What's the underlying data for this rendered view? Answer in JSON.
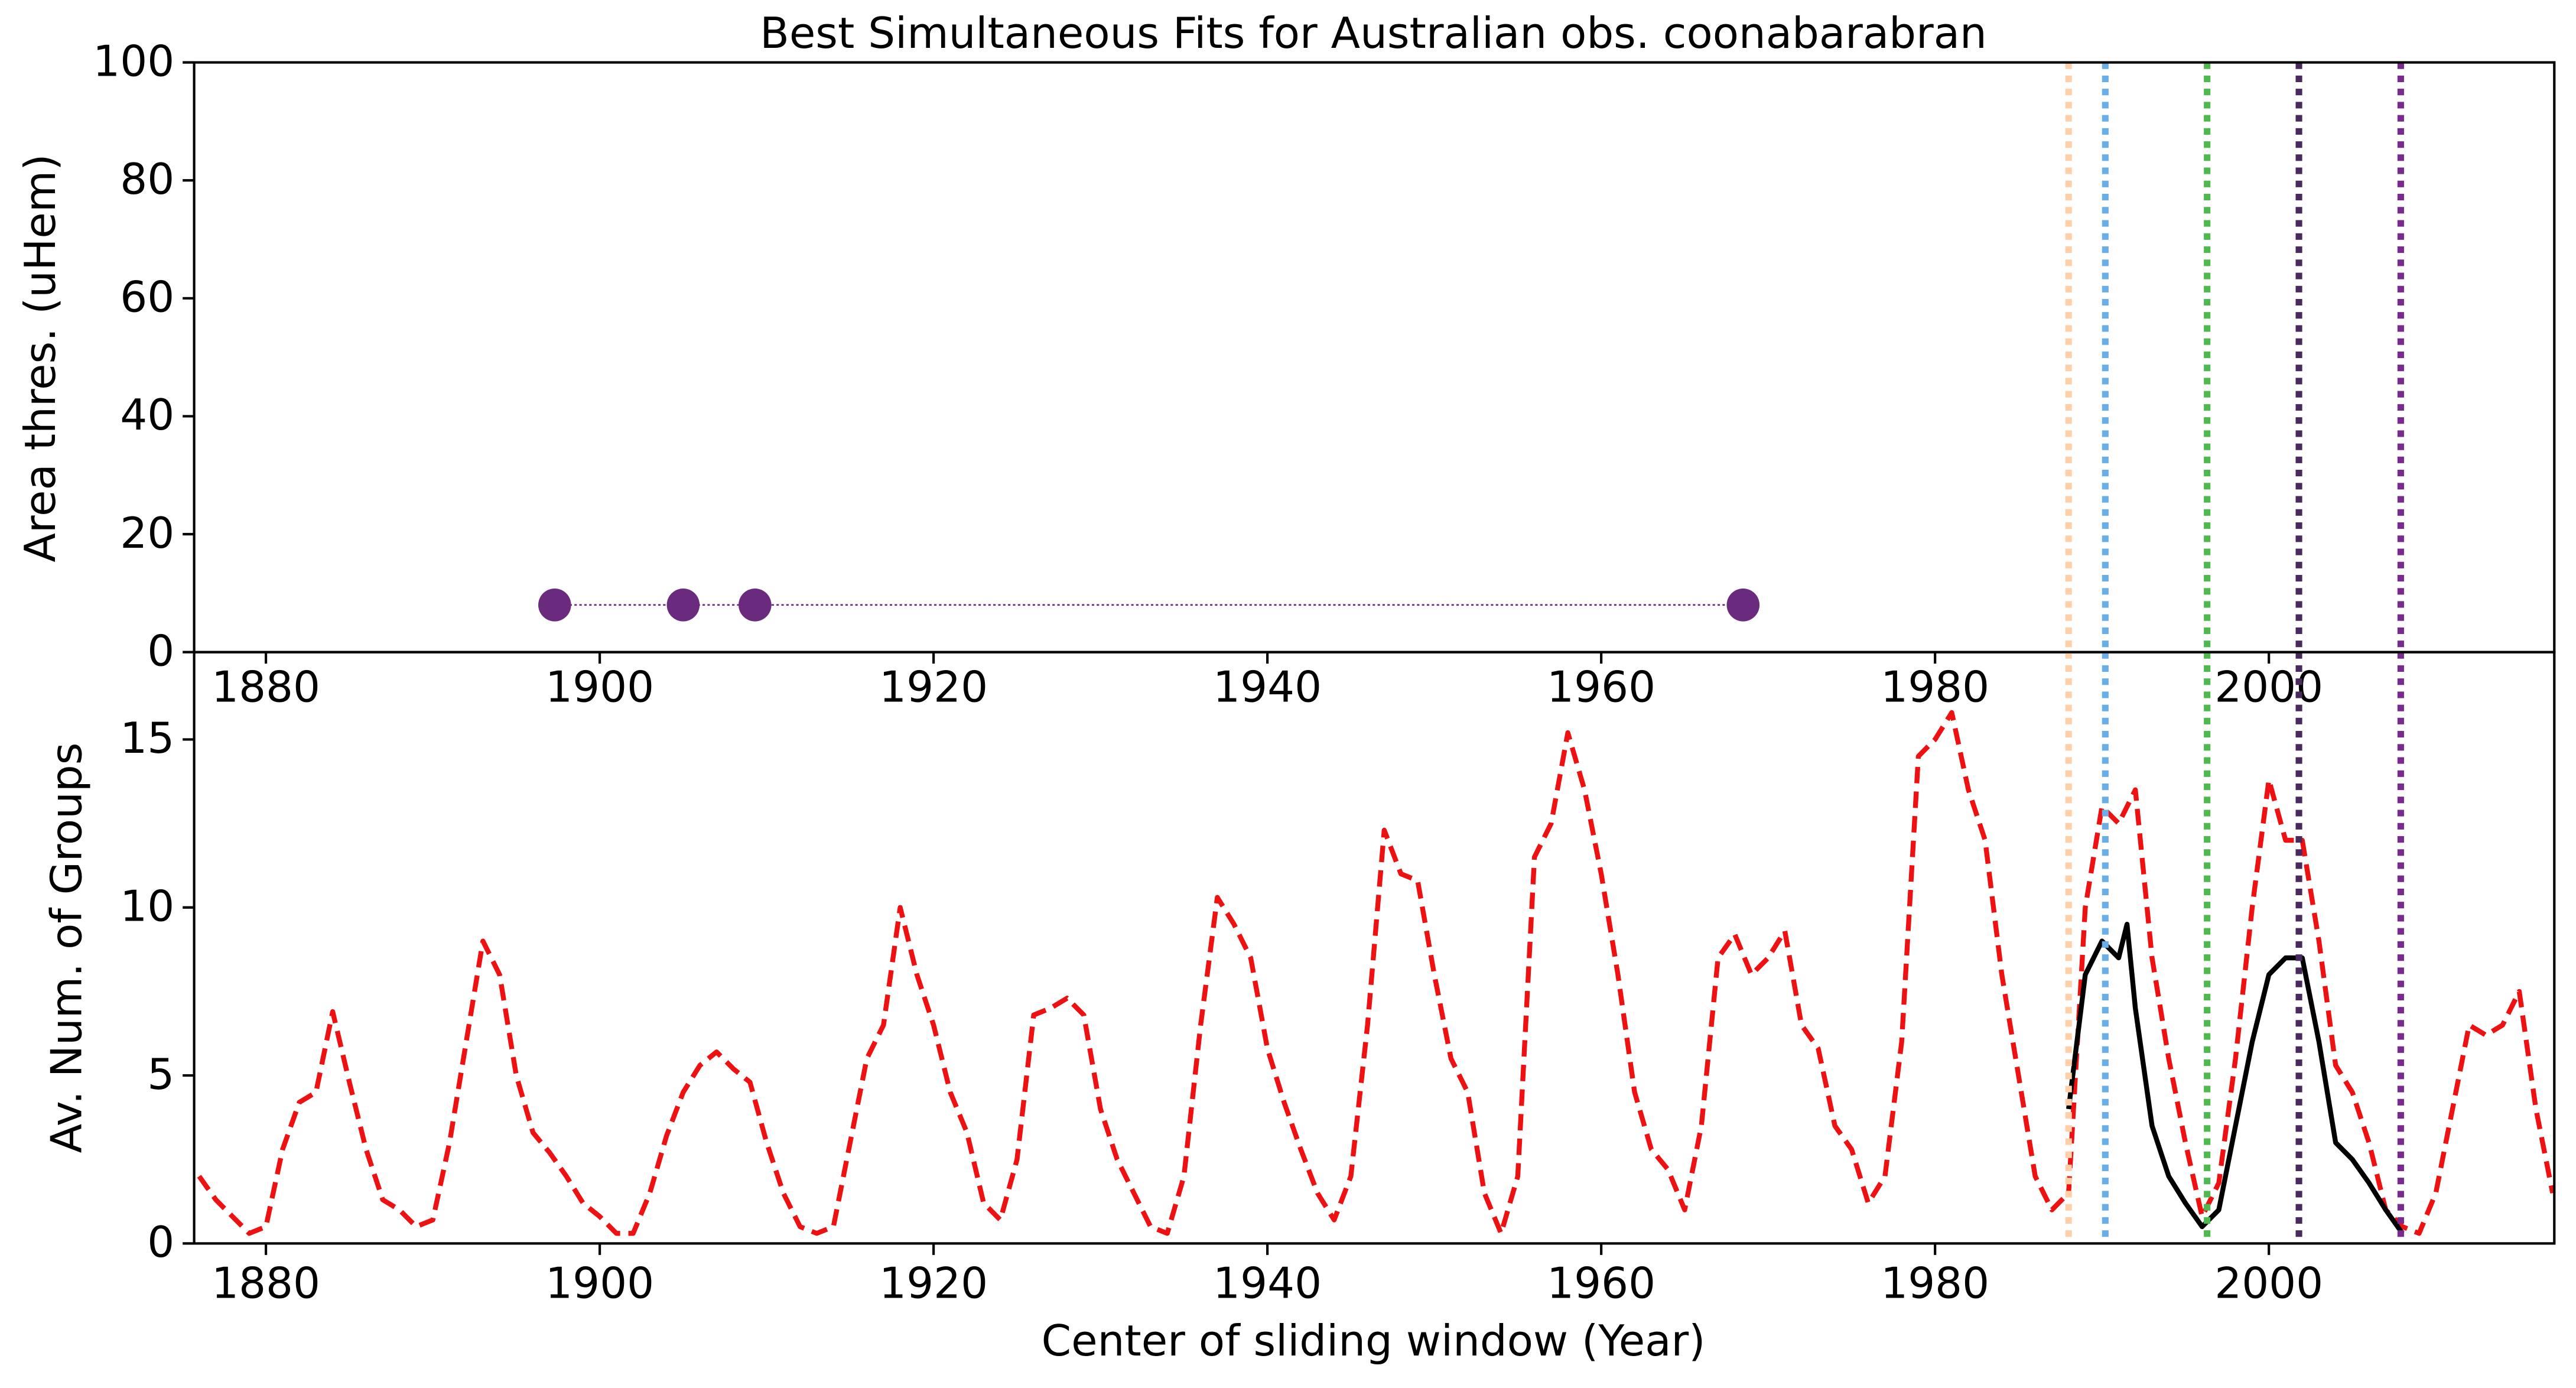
{
  "chart_data": [
    {
      "type": "scatter",
      "title": "Best Simultaneous Fits for Australian obs. coonabarabran",
      "ylabel": "Area thres. (uHem)",
      "xlim": [
        1875.7,
        2017.1
      ],
      "xticks": [
        1880,
        1900,
        1920,
        1940,
        1960,
        1980,
        2000
      ],
      "ylim": [
        0,
        100
      ],
      "yticks": [
        0,
        20,
        40,
        60,
        80,
        100
      ],
      "x": [
        1897.3,
        1905,
        1909.3,
        1968.5
      ],
      "values": [
        8,
        8,
        8,
        8
      ],
      "color": "#6a2a7e",
      "vlines": [
        {
          "x": 1988,
          "color": "#ffd0a8"
        },
        {
          "x": 1990.2,
          "color": "#6aaee8"
        },
        {
          "x": 1996.3,
          "color": "#4fb84f"
        },
        {
          "x": 2001.8,
          "color": "#4a2a5e"
        },
        {
          "x": 2007.9,
          "color": "#7a2a8e"
        }
      ]
    },
    {
      "type": "line",
      "ylabel": "Av. Num. of Groups",
      "xlabel": "Center of sliding window (Year)",
      "xlim": [
        1875.7,
        2017.1
      ],
      "xticks": [
        1880,
        1900,
        1920,
        1940,
        1960,
        1980,
        2000
      ],
      "ylim": [
        0,
        17.6
      ],
      "yticks": [
        0,
        5,
        10,
        15
      ],
      "series": [
        {
          "color": "#ee1111",
          "dashed": true,
          "x": [
            1876,
            1877,
            1878,
            1879,
            1880,
            1881,
            1882,
            1883,
            1884,
            1885,
            1886,
            1887,
            1888,
            1889,
            1890,
            1891,
            1892,
            1893,
            1894,
            1895,
            1896,
            1897,
            1898,
            1899,
            1900,
            1901,
            1902,
            1903,
            1904,
            1905,
            1906,
            1907,
            1908,
            1909,
            1910,
            1911,
            1912,
            1913,
            1914,
            1915,
            1916,
            1917,
            1918,
            1919,
            1920,
            1921,
            1922,
            1923,
            1924,
            1925,
            1926,
            1927,
            1928,
            1929,
            1930,
            1931,
            1932,
            1933,
            1934,
            1935,
            1936,
            1937,
            1938,
            1939,
            1940,
            1941,
            1942,
            1943,
            1944,
            1945,
            1946,
            1947,
            1948,
            1949,
            1950,
            1951,
            1952,
            1953,
            1954,
            1955,
            1956,
            1957,
            1958,
            1959,
            1960,
            1961,
            1962,
            1963,
            1964,
            1965,
            1966,
            1967,
            1968,
            1969,
            1970,
            1971,
            1972,
            1973,
            1974,
            1975,
            1976,
            1977,
            1978,
            1979,
            1980,
            1981,
            1982,
            1983,
            1984,
            1985,
            1986,
            1987,
            1988,
            1989,
            1990,
            1991,
            1992,
            1993,
            1994,
            1995,
            1996,
            1997,
            1998,
            1999,
            2000,
            2001,
            2002,
            2003,
            2004,
            2005,
            2006,
            2007,
            2008,
            2009,
            2010,
            2011,
            2012,
            2013,
            2014,
            2015,
            2016,
            2017
          ],
          "values": [
            2.0,
            1.3,
            0.8,
            0.3,
            0.5,
            2.8,
            4.2,
            4.5,
            6.9,
            4.8,
            2.8,
            1.3,
            1.0,
            0.5,
            0.7,
            3.0,
            6.0,
            9.0,
            8.0,
            5.0,
            3.3,
            2.7,
            2.0,
            1.2,
            0.8,
            0.3,
            0.3,
            1.5,
            3.2,
            4.5,
            5.3,
            5.7,
            5.2,
            4.8,
            3.0,
            1.5,
            0.5,
            0.3,
            0.5,
            3.0,
            5.5,
            6.5,
            10.0,
            8.0,
            6.5,
            4.5,
            3.3,
            1.2,
            0.7,
            2.5,
            6.8,
            7.0,
            7.3,
            6.8,
            4.0,
            2.5,
            1.5,
            0.5,
            0.3,
            2.0,
            6.5,
            10.3,
            9.5,
            8.5,
            5.8,
            4.2,
            2.8,
            1.5,
            0.7,
            2.0,
            6.5,
            12.3,
            11.0,
            10.8,
            8.0,
            5.5,
            4.5,
            1.5,
            0.3,
            2.0,
            11.5,
            12.5,
            15.2,
            13.5,
            11.0,
            8.0,
            4.5,
            2.8,
            2.2,
            1.0,
            3.5,
            8.5,
            9.2,
            8.0,
            8.5,
            9.3,
            6.5,
            5.8,
            3.5,
            2.8,
            1.2,
            2.0,
            6.0,
            14.5,
            15.0,
            15.8,
            13.5,
            12.0,
            8.0,
            5.0,
            2.0,
            1.0,
            1.5,
            10.0,
            13.0,
            12.5,
            13.5,
            8.5,
            5.5,
            3.0,
            0.8,
            1.8,
            5.5,
            10.0,
            13.8,
            12.0,
            12.0,
            9.0,
            5.3,
            4.5,
            3.0,
            1.0,
            0.5,
            0.3,
            1.5,
            4.0,
            6.5,
            6.2,
            6.5,
            7.5,
            4.0,
            1.5
          ]
        },
        {
          "color": "#000000",
          "dashed": false,
          "x": [
            1988,
            1989,
            1990,
            1991,
            1991.5,
            1992,
            1993,
            1994,
            1995,
            1996,
            1997,
            1998,
            1999,
            2000,
            2001,
            2002,
            2003,
            2004,
            2005,
            2006,
            2007,
            2008
          ],
          "values": [
            4.0,
            8.0,
            9.0,
            8.5,
            9.5,
            7.0,
            3.5,
            2.0,
            1.2,
            0.5,
            1.0,
            3.5,
            6.0,
            8.0,
            8.5,
            8.5,
            6.0,
            3.0,
            2.5,
            1.8,
            1.0,
            0.3
          ]
        }
      ],
      "vlines": [
        {
          "x": 1988,
          "color": "#ffd0a8"
        },
        {
          "x": 1990.2,
          "color": "#6aaee8"
        },
        {
          "x": 1996.3,
          "color": "#4fb84f"
        },
        {
          "x": 2001.8,
          "color": "#4a2a5e"
        },
        {
          "x": 2007.9,
          "color": "#7a2a8e"
        }
      ]
    }
  ]
}
